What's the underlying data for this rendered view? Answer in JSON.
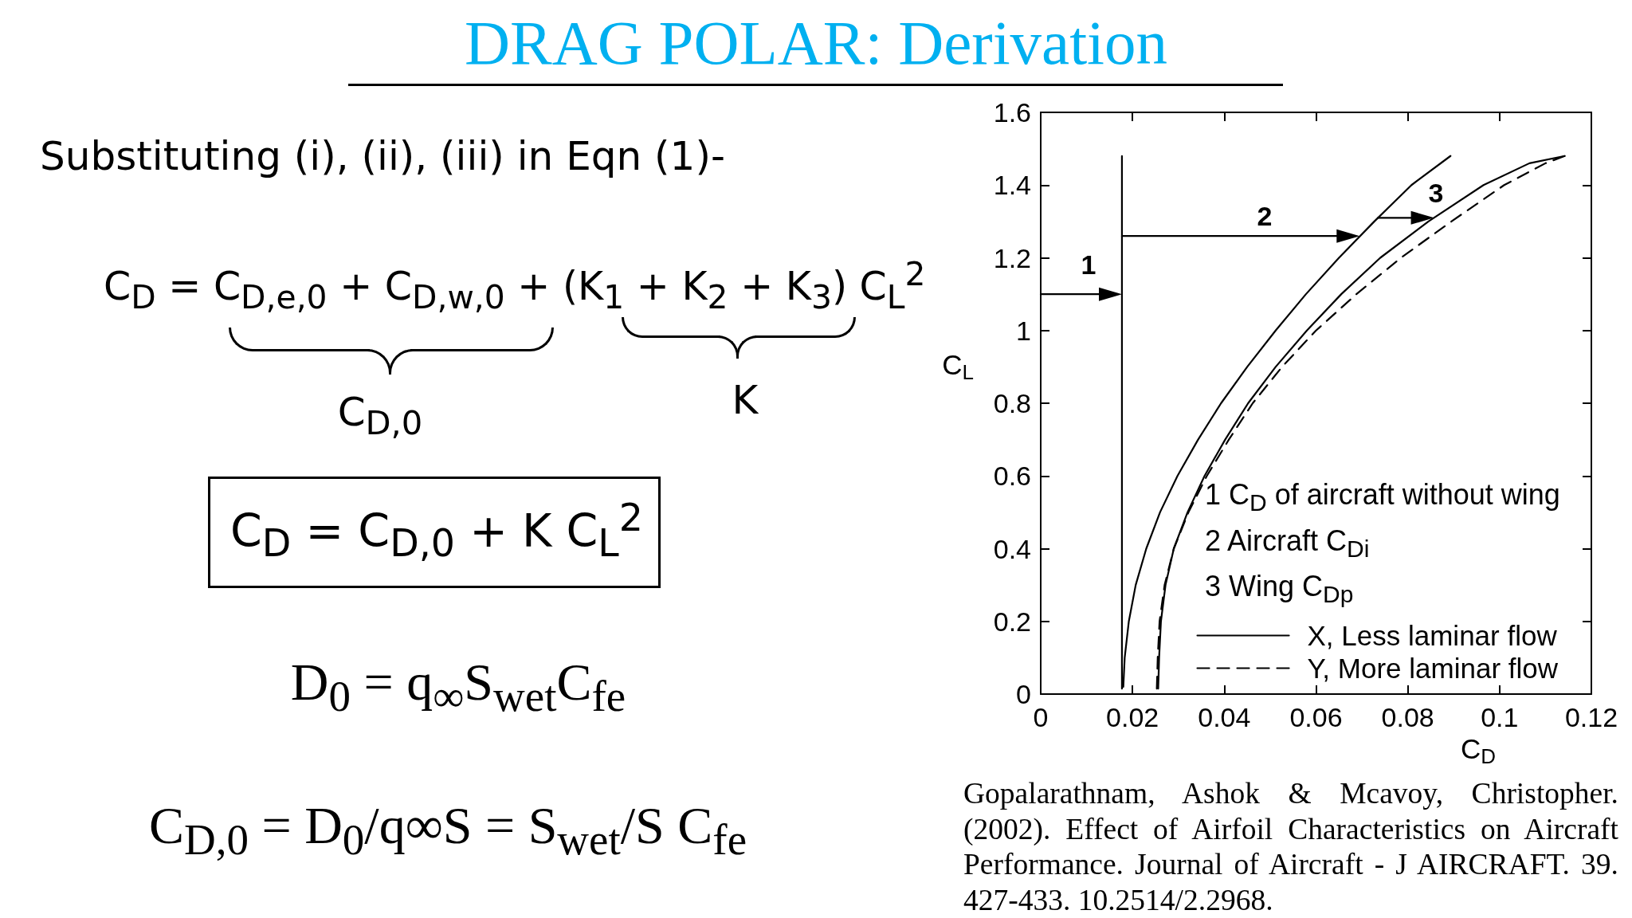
{
  "chart_data": {
    "type": "line",
    "title": "DRAG POLAR: Derivation",
    "xlabel": "C$_{D}$",
    "ylabel": "C$_{L}$",
    "xlim": [
      0,
      0.12
    ],
    "xticks": [
      0,
      0.02,
      0.04,
      0.06,
      0.08,
      0.1,
      0.12
    ],
    "ylim": [
      0,
      1.6
    ],
    "yticks": [
      0,
      0.2,
      0.4,
      0.6,
      0.8,
      1,
      1.2,
      1.4,
      1.6
    ],
    "grid": false,
    "legend": "bottom right",
    "marker": "none",
    "line_style": "solid",
    "series": [
      {
        "color": "#000000",
        "x": [
          0.0177,
          0.0177
        ],
        "values": [
          0.015,
          1.48
        ]
      },
      {
        "color": "#000000",
        "x": [
          0.018,
          0.0183,
          0.0192,
          0.0207,
          0.023,
          0.026,
          0.0298,
          0.0343,
          0.0393,
          0.045,
          0.0512,
          0.0578,
          0.065,
          0.0727,
          0.0808,
          0.0893
        ],
        "values": [
          0.02,
          0.1,
          0.2,
          0.3,
          0.4,
          0.5,
          0.6,
          0.7,
          0.8,
          0.9,
          1.0,
          1.1,
          1.2,
          1.3,
          1.4,
          1.48
        ]
      },
      {
        "name": "X, Less laminar flow",
        "color": "#000000",
        "x": [
          0.0256,
          0.0258,
          0.0262,
          0.0272,
          0.029,
          0.032,
          0.0357,
          0.0402,
          0.0452,
          0.0512,
          0.058,
          0.0655,
          0.074,
          0.0845,
          0.0965,
          0.1065,
          0.1142
        ],
        "values": [
          0.015,
          0.1,
          0.2,
          0.3,
          0.4,
          0.5,
          0.6,
          0.7,
          0.8,
          0.9,
          1.0,
          1.1,
          1.2,
          1.3,
          1.4,
          1.46,
          1.48
        ]
      },
      {
        "name": "Y, More laminar flow",
        "color": "#000000",
        "line_style": "dashed",
        "x": [
          0.0253,
          0.0255,
          0.0259,
          0.027,
          0.029,
          0.0322,
          0.0362,
          0.041,
          0.0462,
          0.0526,
          0.06,
          0.0688,
          0.0785,
          0.0895,
          0.101,
          0.11,
          0.1142
        ],
        "values": [
          0.015,
          0.1,
          0.2,
          0.3,
          0.4,
          0.5,
          0.6,
          0.7,
          0.8,
          0.9,
          1.0,
          1.1,
          1.2,
          1.3,
          1.4,
          1.46,
          1.48
        ]
      },
      {
        "color": "#000000",
        "marker": "triangle",
        "x": [
          0,
          0.0152
        ],
        "values": [
          1.1,
          1.1
        ]
      },
      {
        "color": "#000000",
        "marker": "triangle",
        "x": [
          0.0177,
          0.067
        ],
        "values": [
          1.26,
          1.26
        ]
      },
      {
        "color": "#000000",
        "marker": "triangle",
        "x": [
          0.0735,
          0.0832
        ],
        "values": [
          1.31,
          1.31
        ]
      }
    ],
    "annotations": [
      "Substituting (i), (ii), (iii) in Eqn (1)-",
      "C$_{D}$ = C$_{D,e,0}$ + C$_{D,w,0}$ + (K$_{1}$ + K$_{2}$ + K$_{3}$) C$_{L}$$^{2}$",
      "C$_{D,0}$",
      "K",
      "C$_{D}$ = C$_{D,0}$ + K C$_{L}$$^{2}$",
      "D$_{0}$ = q$_{∞}$S$_{wet}$C$_{fe}$",
      "C$_{D,0}$ = D$_{0}$/q∞S = S$_{wet}$/S C$_{fe}$",
      "1 C$_{D}$ of aircraft without wing",
      "2 Aircraft C$_{Di}$",
      "3 Wing C$_{Dp}$",
      "Gopalarathnam, Ashok & Mcavoy, Christopher. (2002). Effect of Airfoil Characteristics on Aircraft Performance. Journal of Aircraft - J AIRCRAFT. 39. 427-433. 10.2514/2.2968.",
      "1",
      "2",
      "3"
    ]
  }
}
